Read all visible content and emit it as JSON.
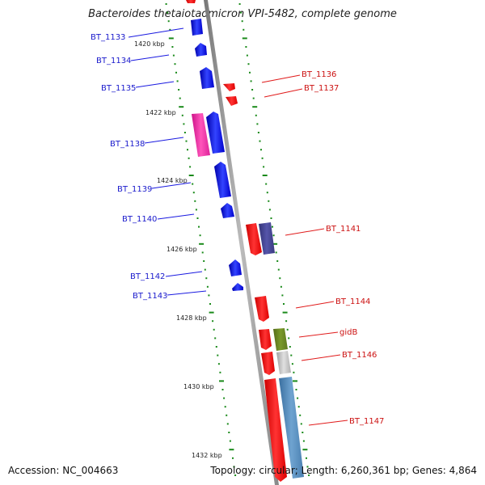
{
  "title": "Bacteroides thetaiotaomicron VPI-5482, complete genome",
  "footer": {
    "accession": "Accession: NC_004663",
    "summary": "Topology: circular; Length: 6,260,361 bp; Genes: 4,864"
  },
  "scale_labels": [
    "1420 kbp",
    "1422 kbp",
    "1424 kbp",
    "1426 kbp",
    "1428 kbp",
    "1430 kbp",
    "1432 kbp"
  ],
  "genes_left": [
    "BT_1133",
    "BT_1134",
    "BT_1135",
    "BT_1138",
    "BT_1139",
    "BT_1140",
    "BT_1142",
    "BT_1143"
  ],
  "genes_right": [
    "BT_1136",
    "BT_1137",
    "BT_1141",
    "BT_1144",
    "gidB",
    "BT_1146",
    "BT_1147"
  ],
  "colors": {
    "forward": "#0000ff",
    "reverse": "#ff0000",
    "left_label": "#00008b",
    "right_label": "#cc0000",
    "tick": "#1a8a1a",
    "backbone": "#909090"
  }
}
